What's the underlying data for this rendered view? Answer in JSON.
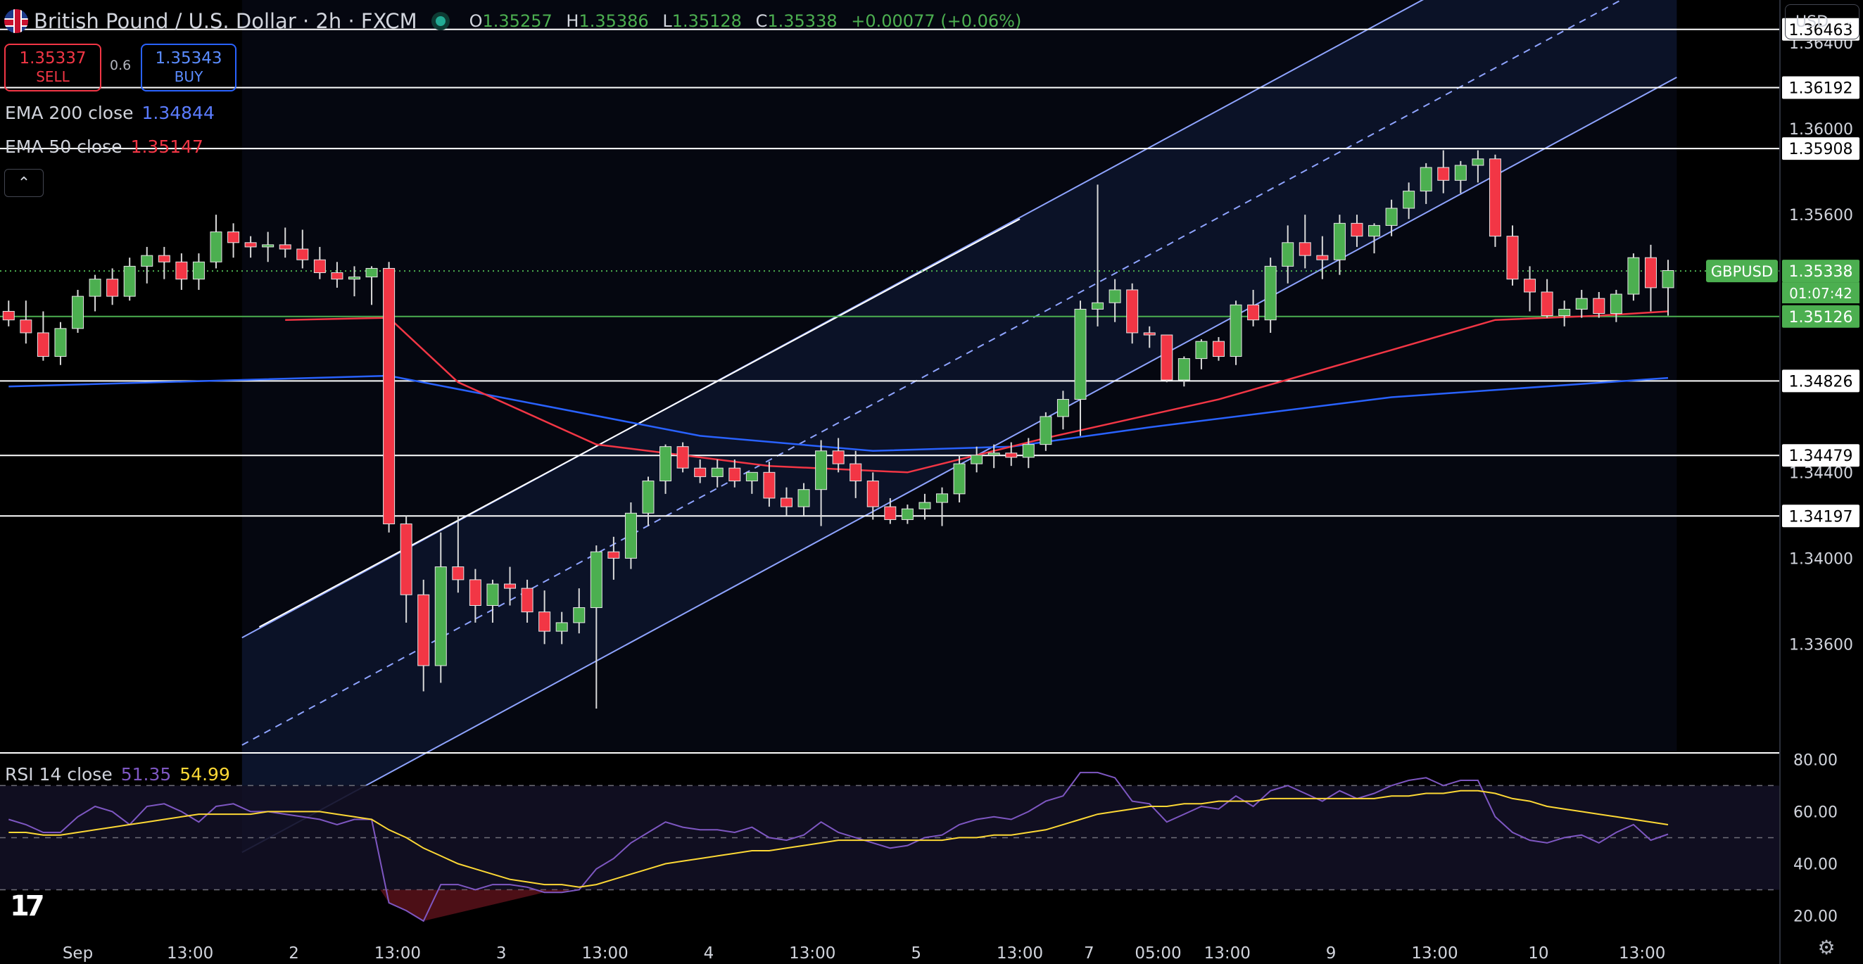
{
  "header": {
    "symbol_title": "British Pound / U.S. Dollar · 2h · FXCM",
    "open_label": "O",
    "open": "1.35257",
    "high_label": "H",
    "high": "1.35386",
    "low_label": "L",
    "low": "1.35128",
    "close_label": "C",
    "close": "1.35338",
    "change": "+0.00077 (+0.06%)"
  },
  "trade": {
    "sell_price": "1.35337",
    "sell_label": "SELL",
    "buy_price": "1.35343",
    "buy_label": "BUY",
    "spread": "0.6"
  },
  "indicators": {
    "ema200_label": "EMA 200 close",
    "ema200_value": "1.34844",
    "ema50_label": "EMA 50 close",
    "ema50_value": "1.35147",
    "rsi_label": "RSI 14 close",
    "rsi_value": "51.35",
    "rsi_ma_value": "54.99"
  },
  "currency": "USD",
  "collapse_icon": "chevron-up-icon",
  "colors": {
    "up": "#4caf50",
    "down": "#f23645",
    "ema200": "#2962ff",
    "ema50": "#f23645",
    "rsi": "#7e57c2",
    "rsi_ma": "#fdd835",
    "channel": "#8fa4ff",
    "price_tag": "#4caf50"
  },
  "chart_data": {
    "type": "candlestick",
    "title": "British Pound / U.S. Dollar · 2h · FXCM",
    "ylim": [
      1.331,
      1.366
    ],
    "y_ticks": [
      "1.36400",
      "1.36000",
      "1.35600",
      "1.34400",
      "1.34000",
      "1.33600"
    ],
    "y_tick_values": [
      1.364,
      1.36,
      1.356,
      1.344,
      1.34,
      1.336
    ],
    "x_ticks": [
      "Sep",
      "13:00",
      "2",
      "13:00",
      "3",
      "13:00",
      "4",
      "13:00",
      "5",
      "13:00",
      "7",
      "05:00",
      "13:00",
      "9",
      "13:00",
      "10",
      "13:00"
    ],
    "x_tick_bars": [
      4,
      10.5,
      16.5,
      22.5,
      28.5,
      34.5,
      40.5,
      46.5,
      52.5,
      58.5,
      62.5,
      66.5,
      70.5,
      76.5,
      82.5,
      88.5,
      94.5
    ],
    "bar_count": 97,
    "horizontal_levels": [
      {
        "label": "1.36463",
        "value": 1.36463
      },
      {
        "label": "1.36192",
        "value": 1.36192
      },
      {
        "label": "1.35908",
        "value": 1.35908
      },
      {
        "label": "1.34826",
        "value": 1.34826
      },
      {
        "label": "1.34479",
        "value": 1.34479
      },
      {
        "label": "1.34197",
        "value": 1.34197
      }
    ],
    "support_level": {
      "label": "1.35126",
      "value": 1.35126
    },
    "last_price": {
      "symbol": "GBPUSD",
      "label": "1.35338",
      "value": 1.35338,
      "countdown": "01:07:42"
    },
    "channel": {
      "upper": [
        [
          13.5,
          1.3363
        ],
        [
          96.5,
          1.3724
        ]
      ],
      "lower": [
        [
          13.5,
          1.3263
        ],
        [
          96.5,
          1.3624
        ]
      ],
      "extra_line": [
        [
          14.5,
          1.3368
        ],
        [
          58.5,
          1.3558
        ]
      ]
    },
    "candles": [
      [
        1.3515,
        1.352,
        1.3508,
        1.3511
      ],
      [
        1.3511,
        1.352,
        1.35,
        1.3505
      ],
      [
        1.3505,
        1.3515,
        1.3492,
        1.3494
      ],
      [
        1.3494,
        1.351,
        1.349,
        1.3507
      ],
      [
        1.3507,
        1.3525,
        1.3505,
        1.3522
      ],
      [
        1.3522,
        1.3532,
        1.3515,
        1.353
      ],
      [
        1.353,
        1.3535,
        1.3518,
        1.3522
      ],
      [
        1.3522,
        1.354,
        1.352,
        1.3536
      ],
      [
        1.3536,
        1.3545,
        1.3528,
        1.3541
      ],
      [
        1.3541,
        1.3545,
        1.353,
        1.3538
      ],
      [
        1.3538,
        1.3542,
        1.3525,
        1.353
      ],
      [
        1.353,
        1.3542,
        1.3525,
        1.3538
      ],
      [
        1.3538,
        1.356,
        1.3535,
        1.3552
      ],
      [
        1.3552,
        1.3556,
        1.354,
        1.3547
      ],
      [
        1.3547,
        1.355,
        1.354,
        1.3545
      ],
      [
        1.3545,
        1.3552,
        1.3538,
        1.3546
      ],
      [
        1.3546,
        1.3554,
        1.354,
        1.3544
      ],
      [
        1.3544,
        1.3553,
        1.3535,
        1.3539
      ],
      [
        1.3539,
        1.3545,
        1.353,
        1.3533
      ],
      [
        1.3533,
        1.3538,
        1.3526,
        1.353
      ],
      [
        1.353,
        1.3536,
        1.3522,
        1.3531
      ],
      [
        1.3531,
        1.3536,
        1.3518,
        1.3535
      ],
      [
        1.3535,
        1.3538,
        1.3412,
        1.3416
      ],
      [
        1.3416,
        1.342,
        1.337,
        1.3383
      ],
      [
        1.3383,
        1.339,
        1.3338,
        1.335
      ],
      [
        1.335,
        1.3412,
        1.3342,
        1.3396
      ],
      [
        1.3396,
        1.342,
        1.3384,
        1.339
      ],
      [
        1.339,
        1.3395,
        1.337,
        1.3378
      ],
      [
        1.3378,
        1.339,
        1.337,
        1.3388
      ],
      [
        1.3388,
        1.3396,
        1.3378,
        1.3386
      ],
      [
        1.3386,
        1.339,
        1.337,
        1.3375
      ],
      [
        1.3375,
        1.3385,
        1.336,
        1.3366
      ],
      [
        1.3366,
        1.3375,
        1.336,
        1.337
      ],
      [
        1.337,
        1.3386,
        1.3365,
        1.3377
      ],
      [
        1.3377,
        1.3406,
        1.333,
        1.3403
      ],
      [
        1.3403,
        1.341,
        1.339,
        1.34
      ],
      [
        1.34,
        1.3426,
        1.3395,
        1.3421
      ],
      [
        1.3421,
        1.3438,
        1.3415,
        1.3436
      ],
      [
        1.3436,
        1.3453,
        1.343,
        1.3452
      ],
      [
        1.3452,
        1.3454,
        1.344,
        1.3442
      ],
      [
        1.3442,
        1.3446,
        1.3435,
        1.3438
      ],
      [
        1.3438,
        1.3446,
        1.3433,
        1.3442
      ],
      [
        1.3442,
        1.3446,
        1.3433,
        1.3436
      ],
      [
        1.3436,
        1.344,
        1.343,
        1.344
      ],
      [
        1.344,
        1.3445,
        1.3424,
        1.3428
      ],
      [
        1.3428,
        1.3433,
        1.342,
        1.3424
      ],
      [
        1.3424,
        1.3435,
        1.342,
        1.3432
      ],
      [
        1.3432,
        1.3455,
        1.3415,
        1.345
      ],
      [
        1.345,
        1.3456,
        1.344,
        1.3444
      ],
      [
        1.3444,
        1.345,
        1.3428,
        1.3436
      ],
      [
        1.3436,
        1.344,
        1.3418,
        1.3424
      ],
      [
        1.3424,
        1.3428,
        1.3416,
        1.3418
      ],
      [
        1.3418,
        1.3425,
        1.3416,
        1.3423
      ],
      [
        1.3423,
        1.343,
        1.3418,
        1.3426
      ],
      [
        1.3426,
        1.3433,
        1.3415,
        1.343
      ],
      [
        1.343,
        1.3448,
        1.3426,
        1.3444
      ],
      [
        1.3444,
        1.3452,
        1.344,
        1.3448
      ],
      [
        1.3448,
        1.3453,
        1.3442,
        1.3449
      ],
      [
        1.3449,
        1.3454,
        1.3443,
        1.3447
      ],
      [
        1.3447,
        1.3456,
        1.3442,
        1.3453
      ],
      [
        1.3453,
        1.3468,
        1.345,
        1.3466
      ],
      [
        1.3466,
        1.3478,
        1.346,
        1.3474
      ],
      [
        1.3474,
        1.352,
        1.3457,
        1.3516
      ],
      [
        1.3516,
        1.3574,
        1.3508,
        1.3519
      ],
      [
        1.3519,
        1.353,
        1.351,
        1.3525
      ],
      [
        1.3525,
        1.3528,
        1.35,
        1.3505
      ],
      [
        1.3505,
        1.3508,
        1.3498,
        1.3504
      ],
      [
        1.3504,
        1.3502,
        1.3482,
        1.3483
      ],
      [
        1.3483,
        1.3494,
        1.348,
        1.3493
      ],
      [
        1.3493,
        1.3502,
        1.3488,
        1.3501
      ],
      [
        1.3501,
        1.3503,
        1.3492,
        1.3494
      ],
      [
        1.3494,
        1.352,
        1.349,
        1.3518
      ],
      [
        1.3518,
        1.3525,
        1.3508,
        1.3511
      ],
      [
        1.3511,
        1.354,
        1.3505,
        1.3536
      ],
      [
        1.3536,
        1.3555,
        1.3528,
        1.3547
      ],
      [
        1.3547,
        1.356,
        1.3535,
        1.3541
      ],
      [
        1.3541,
        1.355,
        1.353,
        1.3539
      ],
      [
        1.3539,
        1.356,
        1.3532,
        1.3556
      ],
      [
        1.3556,
        1.356,
        1.3545,
        1.355
      ],
      [
        1.355,
        1.3556,
        1.3542,
        1.3555
      ],
      [
        1.3555,
        1.3567,
        1.355,
        1.3563
      ],
      [
        1.3563,
        1.3575,
        1.3558,
        1.3571
      ],
      [
        1.3571,
        1.3584,
        1.3565,
        1.3582
      ],
      [
        1.3582,
        1.359,
        1.357,
        1.3576
      ],
      [
        1.3576,
        1.3585,
        1.357,
        1.3583
      ],
      [
        1.3583,
        1.359,
        1.3575,
        1.3586
      ],
      [
        1.3586,
        1.3588,
        1.3545,
        1.355
      ],
      [
        1.355,
        1.3555,
        1.3527,
        1.353
      ],
      [
        1.353,
        1.3536,
        1.3515,
        1.3524
      ],
      [
        1.3524,
        1.353,
        1.3512,
        1.3513
      ],
      [
        1.3513,
        1.352,
        1.3508,
        1.3516
      ],
      [
        1.3516,
        1.3525,
        1.3512,
        1.3521
      ],
      [
        1.3521,
        1.3524,
        1.3512,
        1.3514
      ],
      [
        1.3514,
        1.3525,
        1.351,
        1.3523
      ],
      [
        1.3523,
        1.3542,
        1.352,
        1.354
      ],
      [
        1.354,
        1.3546,
        1.3515,
        1.3526
      ],
      [
        1.3526,
        1.3539,
        1.3513,
        1.3534
      ]
    ],
    "ema200": [
      [
        0,
        1.348
      ],
      [
        22,
        1.3485
      ],
      [
        40,
        1.3457
      ],
      [
        50,
        1.345
      ],
      [
        58,
        1.3452
      ],
      [
        66,
        1.3461
      ],
      [
        80,
        1.3475
      ],
      [
        96,
        1.3484
      ]
    ],
    "ema50": [
      [
        16,
        1.3511
      ],
      [
        22,
        1.3512
      ],
      [
        26,
        1.3482
      ],
      [
        34,
        1.3453
      ],
      [
        44,
        1.3443
      ],
      [
        52,
        1.344
      ],
      [
        60,
        1.3456
      ],
      [
        70,
        1.3474
      ],
      [
        80,
        1.3497
      ],
      [
        86,
        1.3511
      ],
      [
        92,
        1.3513
      ],
      [
        96,
        1.3515
      ]
    ],
    "rsi": {
      "ylim": [
        15,
        82
      ],
      "y_ticks": [
        "80.00",
        "60.00",
        "40.00",
        "20.00"
      ],
      "y_tick_values": [
        80,
        60,
        40,
        20
      ],
      "bands": [
        70,
        50,
        30
      ],
      "rsi_line": [
        57,
        55,
        52,
        52,
        58,
        62,
        60,
        55,
        62,
        63,
        60,
        56,
        62,
        63,
        60,
        60,
        59,
        58,
        57,
        55,
        57,
        57,
        25,
        22,
        18,
        32,
        32,
        30,
        32,
        32,
        31,
        29,
        29,
        30,
        38,
        42,
        48,
        52,
        56,
        54,
        53,
        53,
        52,
        54,
        50,
        49,
        51,
        56,
        52,
        50,
        48,
        46,
        47,
        50,
        51,
        55,
        57,
        58,
        57,
        60,
        64,
        66,
        75,
        75,
        73,
        64,
        63,
        56,
        59,
        62,
        61,
        66,
        62,
        68,
        70,
        67,
        64,
        68,
        65,
        67,
        70,
        72,
        73,
        70,
        72,
        72,
        58,
        52,
        49,
        48,
        50,
        51,
        48,
        52,
        55,
        49,
        51.35
      ],
      "rsi_ma": [
        52,
        52,
        51,
        51,
        52,
        53,
        54,
        55,
        56,
        57,
        58,
        59,
        59,
        59,
        59,
        60,
        60,
        60,
        60,
        59,
        58,
        57,
        53,
        50,
        46,
        43,
        40,
        38,
        36,
        34,
        33,
        32,
        32,
        31,
        32,
        34,
        36,
        38,
        40,
        41,
        42,
        43,
        44,
        45,
        45,
        46,
        47,
        48,
        49,
        49,
        49,
        49,
        49,
        49,
        49,
        50,
        50,
        51,
        51,
        52,
        53,
        55,
        57,
        59,
        60,
        61,
        62,
        62,
        63,
        63,
        64,
        64,
        64,
        65,
        65,
        65,
        65,
        65,
        65,
        65,
        66,
        66,
        67,
        67,
        68,
        68,
        67,
        65,
        64,
        62,
        61,
        60,
        59,
        58,
        57,
        56,
        54.99
      ]
    }
  }
}
